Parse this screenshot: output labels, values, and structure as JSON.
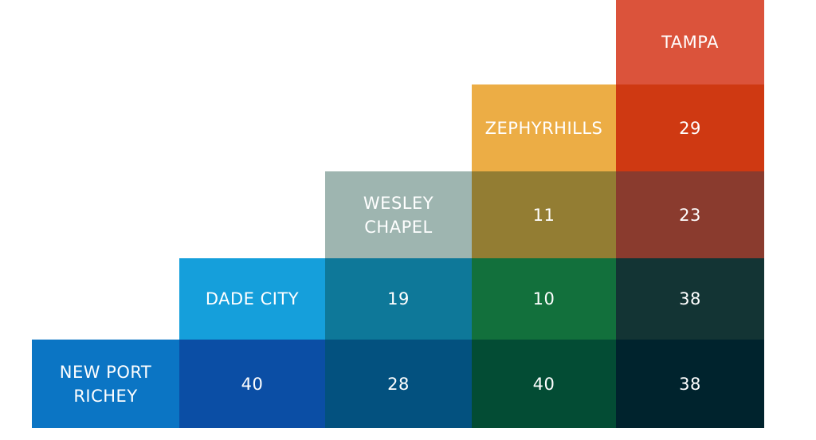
{
  "chart_data": {
    "type": "table",
    "cities": [
      "NEW PORT\nRICHEY",
      "DADE CITY",
      "WESLEY\nCHAPEL",
      "ZEPHYRHILLS",
      "TAMPA"
    ],
    "header_colors": [
      "#0b75c4",
      "#159fdb",
      "#9eb5b0",
      "#ecad45",
      "#db533b"
    ],
    "cells": [
      {
        "row": 0,
        "col": 1,
        "value": "40",
        "color": "#0b4ea5"
      },
      {
        "row": 0,
        "col": 2,
        "value": "28",
        "color": "#03517f"
      },
      {
        "row": 0,
        "col": 3,
        "value": "40",
        "color": "#034c34"
      },
      {
        "row": 0,
        "col": 4,
        "value": "38",
        "color": "#00232d"
      },
      {
        "row": 1,
        "col": 2,
        "value": "19",
        "color": "#0e7899"
      },
      {
        "row": 1,
        "col": 3,
        "value": "10",
        "color": "#12703c"
      },
      {
        "row": 1,
        "col": 4,
        "value": "38",
        "color": "#133434"
      },
      {
        "row": 2,
        "col": 3,
        "value": "11",
        "color": "#937d33"
      },
      {
        "row": 2,
        "col": 4,
        "value": "23",
        "color": "#8a3b2e"
      },
      {
        "row": 3,
        "col": 4,
        "value": "29",
        "color": "#cf3912"
      }
    ]
  }
}
